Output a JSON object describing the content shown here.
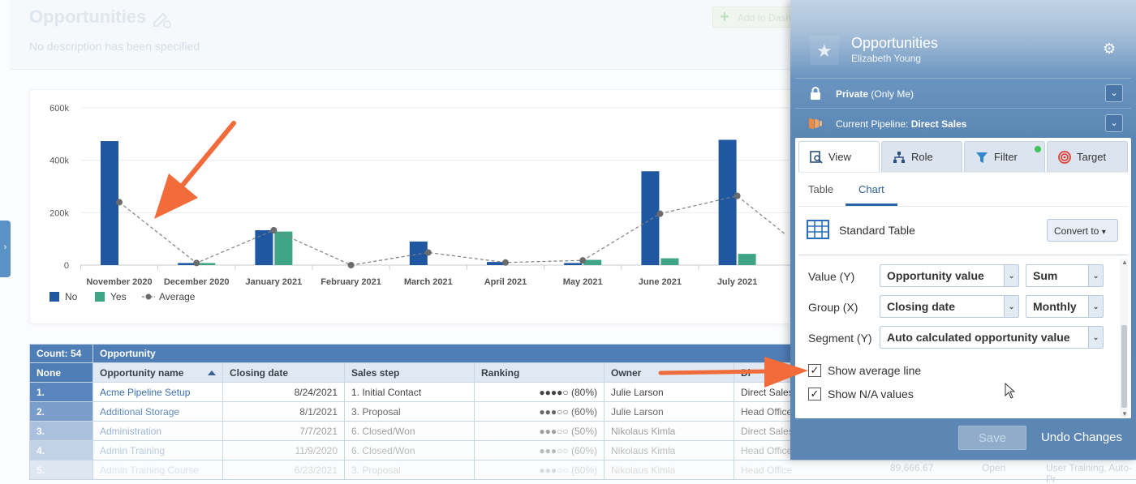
{
  "page": {
    "title": "Opportunities",
    "description": "No description has been specified",
    "add_dashboard_label": "Add to Dash"
  },
  "chart_data": {
    "type": "bar",
    "categories": [
      "November 2020",
      "December 2020",
      "January 2021",
      "February 2021",
      "March 2021",
      "April 2021",
      "May 2021",
      "June 2021",
      "July 2021"
    ],
    "series": [
      {
        "name": "No",
        "values": [
          473000,
          8000,
          133000,
          0,
          90000,
          12000,
          8000,
          358000,
          478000
        ],
        "color": "#1f58a0"
      },
      {
        "name": "Yes",
        "values": [
          0,
          8000,
          128000,
          0,
          0,
          0,
          20000,
          26000,
          43000
        ],
        "color": "#3fa584"
      },
      {
        "name": "Average",
        "type": "line",
        "values": [
          240000,
          8000,
          133000,
          0,
          48000,
          10000,
          18000,
          196000,
          264000
        ],
        "color": "#8c8c8c"
      }
    ],
    "y_ticks": [
      "0",
      "200k",
      "400k",
      "600k"
    ],
    "ylim": [
      0,
      600000
    ],
    "legend": [
      "No",
      "Yes",
      "Average"
    ],
    "legend_position": "bottom-left",
    "grid": true
  },
  "table": {
    "count_label": "Count: 54",
    "group_label": "Opportunity",
    "columns": [
      "None",
      "Opportunity name",
      "Closing date",
      "Sales step",
      "Ranking",
      "Owner",
      "Di"
    ],
    "rows": [
      {
        "idx": "1.",
        "name": "Acme Pipeline Setup",
        "date": "8/24/2021",
        "step": "1. Initial Contact",
        "rank": "●●●●○ (80%)",
        "owner": "Julie Larson",
        "office": "Direct Sales"
      },
      {
        "idx": "2.",
        "name": "Additional Storage",
        "date": "8/1/2021",
        "step": "3. Proposal",
        "rank": "●●●○○ (60%)",
        "owner": "Julie Larson",
        "office": "Head Office"
      },
      {
        "idx": "3.",
        "name": "Administration",
        "date": "7/7/2021",
        "step": "6. Closed/Won",
        "rank": "●●●○○ (50%)",
        "owner": "Nikolaus Kimla",
        "office": "Direct Sales"
      },
      {
        "idx": "4.",
        "name": "Admin Training",
        "date": "11/9/2020",
        "step": "6. Closed/Won",
        "rank": "●●●○○ (60%)",
        "owner": "Nikolaus Kimla",
        "office": "Head Office"
      },
      {
        "idx": "5.",
        "name": "Admin Training Course",
        "date": "6/23/2021",
        "step": "3. Proposal",
        "rank": "●●●○○ (60%)",
        "owner": "Nikolaus Kimla",
        "office": "Head Office"
      }
    ],
    "faint_value": "89,666.67",
    "faint_status": "Open",
    "faint_tags": "User Training, Auto-Pr"
  },
  "panel": {
    "title": "Opportunities",
    "subtitle": "Elizabeth Young",
    "privacy_label": "Private",
    "privacy_suffix": "(Only Me)",
    "pipeline_prefix": "Current Pipeline:",
    "pipeline_value": "Direct Sales",
    "tabs": [
      "View",
      "Role",
      "Filter",
      "Target"
    ],
    "subtabs": [
      "Table",
      "Chart"
    ],
    "active_subtab": "Chart",
    "view_type": "Standard Table",
    "convert_label": "Convert to",
    "value_label": "Value (Y)",
    "value_select": "Opportunity value",
    "value_agg": "Sum",
    "group_label": "Group (X)",
    "group_select": "Closing date",
    "group_period": "Monthly",
    "segment_label": "Segment (Y)",
    "segment_select": "Auto calculated opportunity value",
    "show_avg_label": "Show average line",
    "show_na_label": "Show N/A values",
    "save_label": "Save",
    "undo_label": "Undo Changes"
  },
  "colors": {
    "accent": "#2b63a8",
    "arrow": "#f26b3a",
    "bar_no": "#1f58a0",
    "bar_yes": "#3fa584",
    "filter_dot": "#3ec25a"
  }
}
